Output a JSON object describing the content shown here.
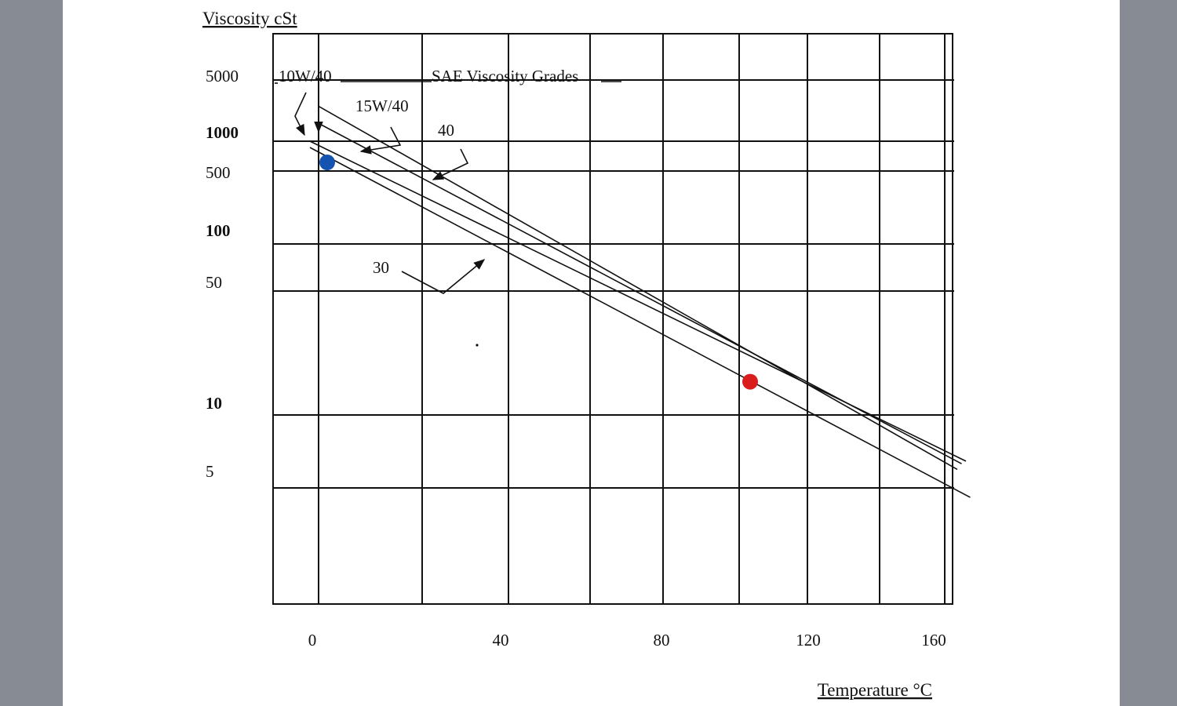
{
  "chart_data": {
    "type": "line",
    "title": "Viscosity cSt",
    "xlabel": "Temperature °C",
    "ylabel": "Viscosity cSt",
    "annotation": "SAE Viscosity Grades",
    "x_ticks": [
      "0",
      "40",
      "80",
      "120",
      "160"
    ],
    "y_ticks": [
      {
        "label": "5000",
        "bold": false
      },
      {
        "label": "1000",
        "bold": true
      },
      {
        "label": "500",
        "bold": false
      },
      {
        "label": "100",
        "bold": true
      },
      {
        "label": "50",
        "bold": false
      },
      {
        "label": "10",
        "bold": true
      },
      {
        "label": "5",
        "bold": false
      }
    ],
    "series": [
      {
        "name": "10W/40",
        "x": [
          -2,
          150
        ],
        "y": [
          1000,
          4.6
        ]
      },
      {
        "name": "15W/40",
        "x": [
          0,
          149
        ],
        "y": [
          1350,
          4.4
        ]
      },
      {
        "name": "40",
        "x": [
          0,
          148
        ],
        "y": [
          1800,
          4.0
        ]
      },
      {
        "name": "30",
        "x": [
          -2,
          151
        ],
        "y": [
          900,
          2.5
        ]
      }
    ],
    "markers": [
      {
        "name": "blue-point",
        "x": 2,
        "y": 700,
        "color": "#1553b0"
      },
      {
        "name": "red-point",
        "x": 100,
        "y": 17.5,
        "color": "#d91c1c"
      }
    ]
  }
}
